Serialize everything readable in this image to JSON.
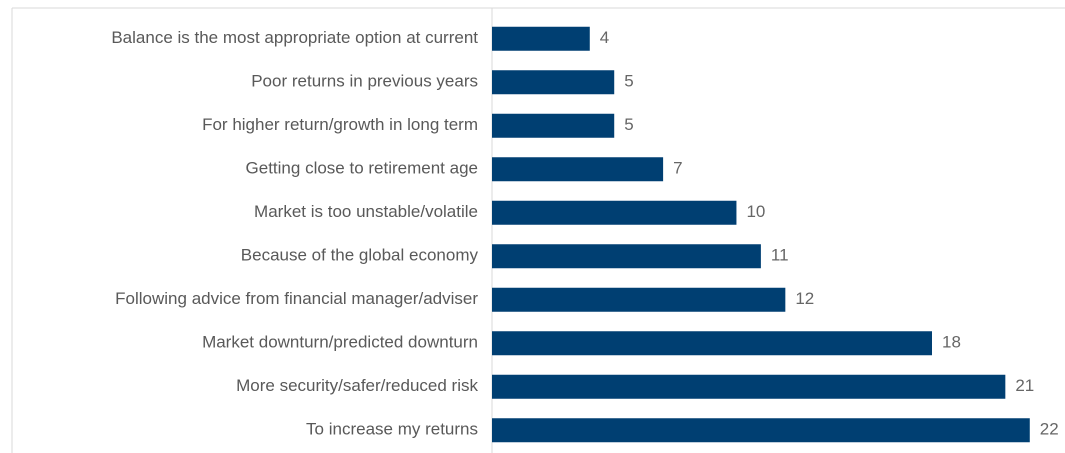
{
  "chart_data": {
    "type": "hbar",
    "categories": [
      "Balance is the most appropriate option at current",
      "Poor returns in previous years",
      "For higher return/growth in long term",
      "Getting close to retirement age",
      "Market is too unstable/volatile",
      "Because of the global economy",
      "Following advice from financial manager/adviser",
      "Market downturn/predicted downturn",
      "More security/safer/reduced risk",
      "To increase my returns"
    ],
    "values": [
      4,
      5,
      5,
      7,
      10,
      11,
      12,
      18,
      21,
      22
    ],
    "color": "#003f72",
    "xlim": [
      0,
      23.4
    ]
  }
}
